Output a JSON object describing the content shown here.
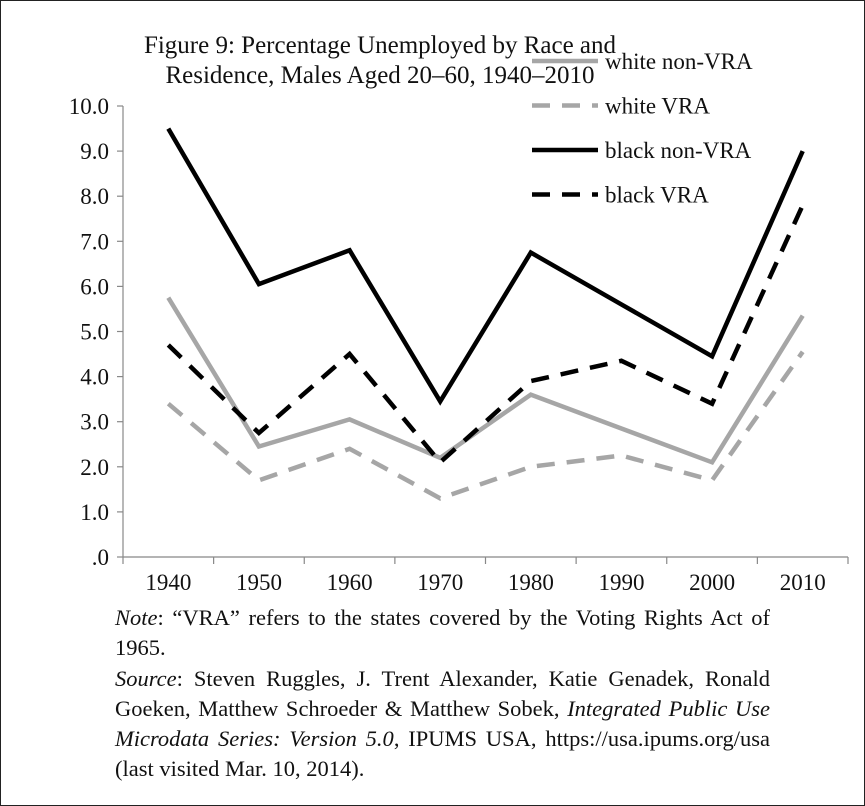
{
  "chart_data": {
    "type": "line",
    "title_line1": "Figure 9: Percentage Unemployed by Race and",
    "title_line2": "Residence, Males Aged 20–60, 1940–2010",
    "categories": [
      "1940",
      "1950",
      "1960",
      "1970",
      "1980",
      "1990",
      "2000",
      "2010"
    ],
    "y_tick_labels": [
      ".0",
      "1.0",
      "2.0",
      "3.0",
      "4.0",
      "5.0",
      "6.0",
      "7.0",
      "8.0",
      "9.0",
      "10.0"
    ],
    "ylim": [
      0,
      10
    ],
    "legend_position": "top-right",
    "series": [
      {
        "name": "white non-VRA",
        "color": "#a6a6a6",
        "dashed": false,
        "values": [
          5.75,
          2.45,
          3.05,
          2.2,
          3.6,
          2.85,
          2.1,
          5.35
        ]
      },
      {
        "name": "white VRA",
        "color": "#a6a6a6",
        "dashed": true,
        "values": [
          3.4,
          1.7,
          2.4,
          1.3,
          2.0,
          2.25,
          1.7,
          4.55
        ]
      },
      {
        "name": "black non-VRA",
        "color": "#000000",
        "dashed": false,
        "values": [
          9.5,
          6.05,
          6.8,
          3.45,
          6.75,
          5.6,
          4.45,
          9.0
        ]
      },
      {
        "name": "black VRA",
        "color": "#000000",
        "dashed": true,
        "values": [
          4.7,
          2.75,
          4.5,
          2.1,
          3.9,
          4.35,
          3.4,
          7.8
        ]
      }
    ]
  },
  "notes": {
    "note_label": "Note",
    "note_text": ":  “VRA”  refers to the states covered by the Voting Rights Act of 1965.",
    "source_label": "Source",
    "source_text_1": ": Steven Ruggles, J. Trent Alexander, Katie Genadek, Ronald Goeken, Matthew Schroeder & Matthew Sobek, ",
    "source_title": "Integrated Public Use Microdata Series: Version 5.0",
    "source_text_2": ", IPUMS USA, https://usa.ipums.org/usa (last visited Mar. 10, 2014)."
  }
}
